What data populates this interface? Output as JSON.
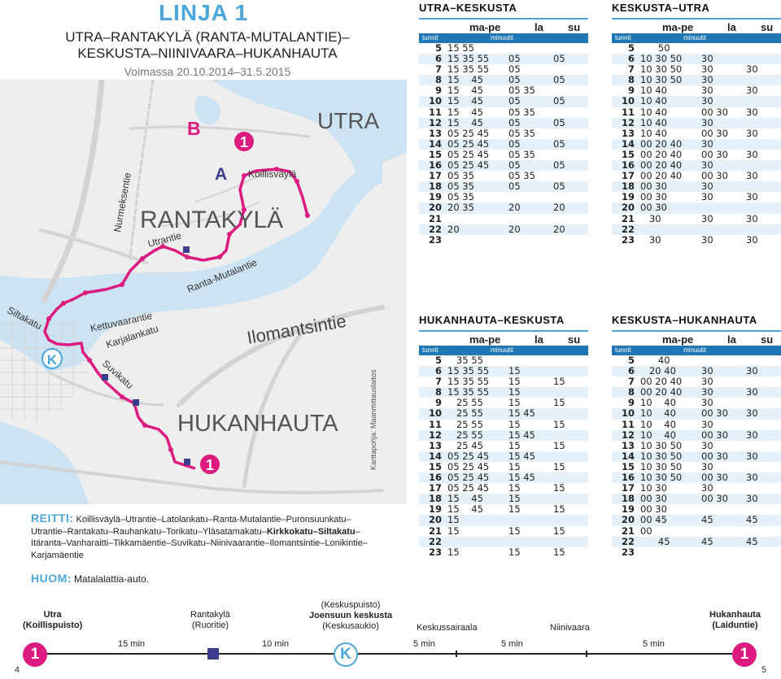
{
  "header": {
    "line_title": "LINJA 1",
    "route_line1": "UTRA–RANTAKYLÄ (RANTA-MUTALANTIE)–",
    "route_line2": "KESKUSTA–NIINIVAARA–HUKANHAUTA",
    "validity": "Voimassa 20.10.2014–31.5.2015"
  },
  "map": {
    "labels": {
      "utra": "UTRA",
      "rantakyla": "RANTAKYLÄ",
      "hukanhauta": "HUKANHAUTA",
      "ilomantsintie": "Ilomantsintie",
      "nurmeksentie": "Nurmeksentie",
      "utrantie": "Utrantie",
      "koillisvayla": "Koillisväylä",
      "ranta_mutalantie": "Ranta-Mutalantie",
      "siltakatu": "Siltakatu",
      "kettuvaarantie": "Kettuvaarantie",
      "karjalankatu": "Karjalankatu",
      "suvikatu": "Suvikatu",
      "marker_a": "A",
      "marker_b": "B",
      "marker_k": "K",
      "marker_1_top": "1",
      "marker_1_bottom": "1"
    },
    "credit": "Karttapohja: Maanmittauslaitos",
    "colors": {
      "route": "#dd1a7f",
      "water": "#cce3f3",
      "road": "#cfcfcf",
      "stop": "#3a3c8c",
      "accent": "#4ba6dc"
    }
  },
  "route": {
    "label": "REITTI:",
    "segments": [
      {
        "t": "Koillisväylä–Utrantie–Latolankatu–Ranta-Mutalantie–Puronsuunkatu–Utrantie–Rantakatu–Rauhankatu–Torikatu–Yläsatamakatu–",
        "b": false
      },
      {
        "t": "Kirkkokatu–Siltakatu",
        "b": true
      },
      {
        "t": "–Itäranta–Vanharaitti–Tikkamäentie–Suvikatu–Niinivaarantie–Ilomantsintie–Lonikintie–Karjamäentie",
        "b": false
      }
    ],
    "note_label": "HUOM:",
    "note": "Matalalattia-auto."
  },
  "timetable_labels": {
    "weekday": "ma-pe",
    "saturday": "la",
    "sunday": "su",
    "hours": "tunnit",
    "minutes": "minuutit"
  },
  "timetables": [
    {
      "title": "UTRA–KESKUSTA",
      "rows": [
        {
          "h": "5",
          "wd": "15 55",
          "sa": "",
          "su": ""
        },
        {
          "h": "6",
          "wd": "15 35 55",
          "sa": "05",
          "su": "05"
        },
        {
          "h": "7",
          "wd": "15 35 55",
          "sa": "05",
          "su": ""
        },
        {
          "h": "8",
          "wd": "15    45",
          "sa": "05",
          "su": "05"
        },
        {
          "h": "9",
          "wd": "15    45",
          "sa": "05 35",
          "su": ""
        },
        {
          "h": "10",
          "wd": "15    45",
          "sa": "05",
          "su": "05"
        },
        {
          "h": "11",
          "wd": "15    45",
          "sa": "05 35",
          "su": ""
        },
        {
          "h": "12",
          "wd": "15    45",
          "sa": "05",
          "su": "05"
        },
        {
          "h": "13",
          "wd": "05 25 45",
          "sa": "05 35",
          "su": ""
        },
        {
          "h": "14",
          "wd": "05 25 45",
          "sa": "05",
          "su": "05"
        },
        {
          "h": "15",
          "wd": "05 25 45",
          "sa": "05 35",
          "su": ""
        },
        {
          "h": "16",
          "wd": "05 25 45",
          "sa": "05",
          "su": "05"
        },
        {
          "h": "17",
          "wd": "05 35",
          "sa": "05 35",
          "su": ""
        },
        {
          "h": "18",
          "wd": "05 35",
          "sa": "05",
          "su": "05"
        },
        {
          "h": "19",
          "wd": "05 35",
          "sa": "",
          "su": ""
        },
        {
          "h": "20",
          "wd": "20 35",
          "sa": "20",
          "su": "20"
        },
        {
          "h": "21",
          "wd": "",
          "sa": "",
          "su": ""
        },
        {
          "h": "22",
          "wd": "20",
          "sa": "20",
          "su": "20"
        },
        {
          "h": "23",
          "wd": "",
          "sa": "",
          "su": ""
        }
      ]
    },
    {
      "title": "KESKUSTA–UTRA",
      "rows": [
        {
          "h": "5",
          "wd": "      50",
          "sa": "",
          "su": ""
        },
        {
          "h": "6",
          "wd": "10 30 50",
          "sa": "30",
          "su": ""
        },
        {
          "h": "7",
          "wd": "10 30 50",
          "sa": "30",
          "su": "30"
        },
        {
          "h": "8",
          "wd": "10 30 50",
          "sa": "30",
          "su": ""
        },
        {
          "h": "9",
          "wd": "10 40",
          "sa": "30",
          "su": "30"
        },
        {
          "h": "10",
          "wd": "10 40",
          "sa": "30",
          "su": ""
        },
        {
          "h": "11",
          "wd": "10 40",
          "sa": "00 30",
          "su": "30"
        },
        {
          "h": "12",
          "wd": "10 40",
          "sa": "30",
          "su": ""
        },
        {
          "h": "13",
          "wd": "10 40",
          "sa": "00 30",
          "su": "30"
        },
        {
          "h": "14",
          "wd": "00 20 40",
          "sa": "30",
          "su": ""
        },
        {
          "h": "15",
          "wd": "00 20 40",
          "sa": "00 30",
          "su": "30"
        },
        {
          "h": "16",
          "wd": "00 20 40",
          "sa": "30",
          "su": ""
        },
        {
          "h": "17",
          "wd": "00 20 40",
          "sa": "00 30",
          "su": "30"
        },
        {
          "h": "18",
          "wd": "00 30",
          "sa": "30",
          "su": ""
        },
        {
          "h": "19",
          "wd": "00 30",
          "sa": "30",
          "su": "30"
        },
        {
          "h": "20",
          "wd": "00 30",
          "sa": "",
          "su": ""
        },
        {
          "h": "21",
          "wd": "   30",
          "sa": "30",
          "su": "30"
        },
        {
          "h": "22",
          "wd": "",
          "sa": "",
          "su": ""
        },
        {
          "h": "23",
          "wd": "   30",
          "sa": "30",
          "su": "30"
        }
      ]
    },
    {
      "title": "HUKANHAUTA–KESKUSTA",
      "rows": [
        {
          "h": "5",
          "wd": "   35 55",
          "sa": "",
          "su": ""
        },
        {
          "h": "6",
          "wd": "15 35 55",
          "sa": "15",
          "su": ""
        },
        {
          "h": "7",
          "wd": "15 35 55",
          "sa": "15",
          "su": "15"
        },
        {
          "h": "8",
          "wd": "15 35 55",
          "sa": "15",
          "su": ""
        },
        {
          "h": "9",
          "wd": "   25 55",
          "sa": "15",
          "su": "15"
        },
        {
          "h": "10",
          "wd": "   25 55",
          "sa": "15 45",
          "su": ""
        },
        {
          "h": "11",
          "wd": "   25 55",
          "sa": "15",
          "su": "15"
        },
        {
          "h": "12",
          "wd": "   25 55",
          "sa": "15 45",
          "su": ""
        },
        {
          "h": "13",
          "wd": "   25 45",
          "sa": "15",
          "su": "15"
        },
        {
          "h": "14",
          "wd": "05 25 45",
          "sa": "15 45",
          "su": ""
        },
        {
          "h": "15",
          "wd": "05 25 45",
          "sa": "15",
          "su": "15"
        },
        {
          "h": "16",
          "wd": "05 25 45",
          "sa": "15 45",
          "su": ""
        },
        {
          "h": "17",
          "wd": "05 25 45",
          "sa": "15",
          "su": "15"
        },
        {
          "h": "18",
          "wd": "15    45",
          "sa": "15",
          "su": ""
        },
        {
          "h": "19",
          "wd": "15    45",
          "sa": "15",
          "su": "15"
        },
        {
          "h": "20",
          "wd": "15",
          "sa": "",
          "su": ""
        },
        {
          "h": "21",
          "wd": "15",
          "sa": "15",
          "su": "15"
        },
        {
          "h": "22",
          "wd": "",
          "sa": "",
          "su": ""
        },
        {
          "h": "23",
          "wd": "15",
          "sa": "15",
          "su": "15"
        }
      ]
    },
    {
      "title": "KESKUSTA–HUKANHAUTA",
      "rows": [
        {
          "h": "5",
          "wd": "      40",
          "sa": "",
          "su": ""
        },
        {
          "h": "6",
          "wd": "   20 40",
          "sa": "30",
          "su": "30"
        },
        {
          "h": "7",
          "wd": "00 20 40",
          "sa": "30",
          "su": ""
        },
        {
          "h": "8",
          "wd": "00 20 40",
          "sa": "30",
          "su": "30"
        },
        {
          "h": "9",
          "wd": "10    40",
          "sa": "30",
          "su": ""
        },
        {
          "h": "10",
          "wd": "10    40",
          "sa": "00 30",
          "su": "30"
        },
        {
          "h": "11",
          "wd": "10    40",
          "sa": "30",
          "su": ""
        },
        {
          "h": "12",
          "wd": "10    40",
          "sa": "00 30",
          "su": "30"
        },
        {
          "h": "13",
          "wd": "10 30 50",
          "sa": "30",
          "su": ""
        },
        {
          "h": "14",
          "wd": "10 30 50",
          "sa": "00 30",
          "su": "30"
        },
        {
          "h": "15",
          "wd": "10 30 50",
          "sa": "30",
          "su": ""
        },
        {
          "h": "16",
          "wd": "10 30 50",
          "sa": "00 30",
          "su": "30"
        },
        {
          "h": "17",
          "wd": "10 30",
          "sa": "30",
          "su": ""
        },
        {
          "h": "18",
          "wd": "00 30",
          "sa": "00 30",
          "su": "30"
        },
        {
          "h": "19",
          "wd": "00 30",
          "sa": "",
          "su": ""
        },
        {
          "h": "20",
          "wd": "00 45",
          "sa": "45",
          "su": "45"
        },
        {
          "h": "21",
          "wd": "00",
          "sa": "",
          "su": ""
        },
        {
          "h": "22",
          "wd": "      45",
          "sa": "45",
          "su": "45"
        },
        {
          "h": "23",
          "wd": "",
          "sa": "",
          "su": ""
        }
      ]
    }
  ],
  "strip": {
    "stops": [
      {
        "top": "Utra",
        "bottom": "(Koillispuisto)",
        "bold": true
      },
      {
        "top": "Rantakylä",
        "bottom": "(Ruoritie)",
        "bold": false
      },
      {
        "top": "(Keskuspuisto)",
        "mid": "Joensuun keskusta",
        "bottom": "(Keskusaukio)",
        "bold": false
      },
      {
        "top": "Keskussairaala",
        "bold": false
      },
      {
        "top": "Niinivaara",
        "bold": false
      },
      {
        "top": "Hukanhauta",
        "bottom": "(Laiduntie)",
        "bold": true
      }
    ],
    "times": [
      "15 min",
      "10 min",
      "5 min",
      "5 min",
      "5 min"
    ],
    "start_marker": "1",
    "center_marker": "K",
    "end_marker": "1"
  },
  "pages": {
    "left": "4",
    "right": "5"
  }
}
